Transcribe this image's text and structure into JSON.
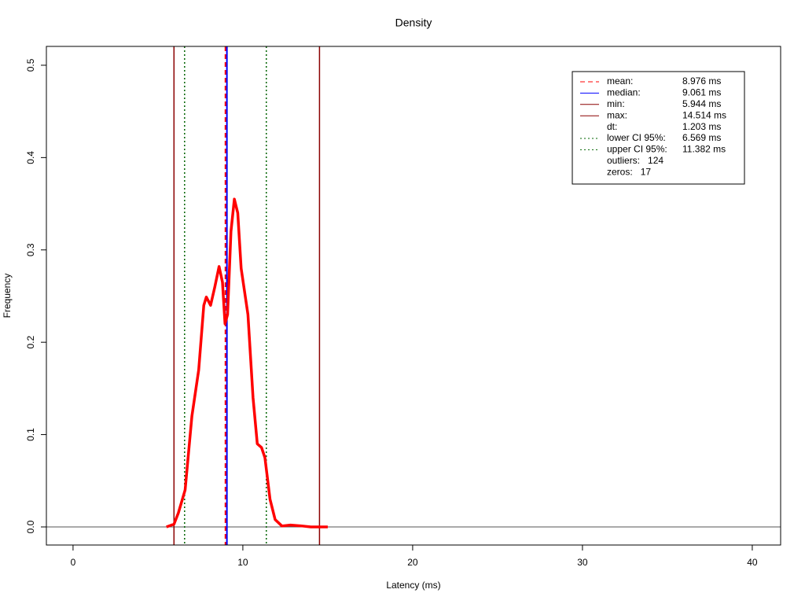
{
  "chart_data": {
    "type": "line",
    "title": "Density",
    "x_label": "Latency (ms)",
    "y_label": "Frequency",
    "series": [
      {
        "color": "#ff0000",
        "x": [
          5.5,
          5.944,
          6.2,
          6.6,
          7.0,
          7.4,
          7.7,
          7.85,
          8.1,
          8.35,
          8.6,
          8.8,
          8.95,
          9.1,
          9.3,
          9.5,
          9.7,
          9.9,
          10.3,
          10.6,
          10.85,
          11.1,
          11.3,
          11.6,
          11.9,
          12.3,
          12.8,
          13.5,
          14.0,
          15.0
        ],
        "values": [
          0.0,
          0.003,
          0.015,
          0.04,
          0.12,
          0.17,
          0.24,
          0.249,
          0.24,
          0.26,
          0.282,
          0.265,
          0.22,
          0.23,
          0.32,
          0.355,
          0.34,
          0.28,
          0.23,
          0.14,
          0.09,
          0.086,
          0.075,
          0.03,
          0.008,
          0.001,
          0.002,
          0.001,
          0.0,
          0.0
        ]
      }
    ],
    "legend_items": [
      {
        "name": "mean:",
        "value": 8.976,
        "value_label": "8.976 ms",
        "color": "#ff0000",
        "dash": "dashed"
      },
      {
        "name": "median:",
        "value": 9.061,
        "value_label": "9.061 ms",
        "color": "#0000ff",
        "dash": "solid"
      },
      {
        "name": "min:",
        "value": 5.944,
        "value_label": "5.944 ms",
        "color": "#8b0000",
        "dash": "solid"
      },
      {
        "name": "max:",
        "value": 14.514,
        "value_label": "14.514 ms",
        "color": "#8b0000",
        "dash": "solid"
      },
      {
        "name": "dt:",
        "value": 1.203,
        "value_label": "1.203 ms"
      },
      {
        "name": "lower CI 95%:",
        "value": 6.569,
        "value_label": "6.569 ms",
        "color": "#006400",
        "dash": "dotted"
      },
      {
        "name": "upper CI 95%:",
        "value": 11.382,
        "value_label": "11.382 ms",
        "color": "#006400",
        "dash": "dotted"
      },
      {
        "name": "outliers:",
        "value": 124
      },
      {
        "name": "zeros:",
        "value": 17
      }
    ],
    "xlim": [
      -1.57,
      41.67
    ],
    "xticks": [
      0,
      10,
      20,
      30,
      40
    ],
    "ylim": [
      -0.0196,
      0.5204
    ],
    "yticks": [
      {
        "value": 0,
        "label": "0.0"
      },
      0.1,
      0.2,
      0.3,
      0.4,
      0.5
    ],
    "legend_position": "top-right"
  }
}
